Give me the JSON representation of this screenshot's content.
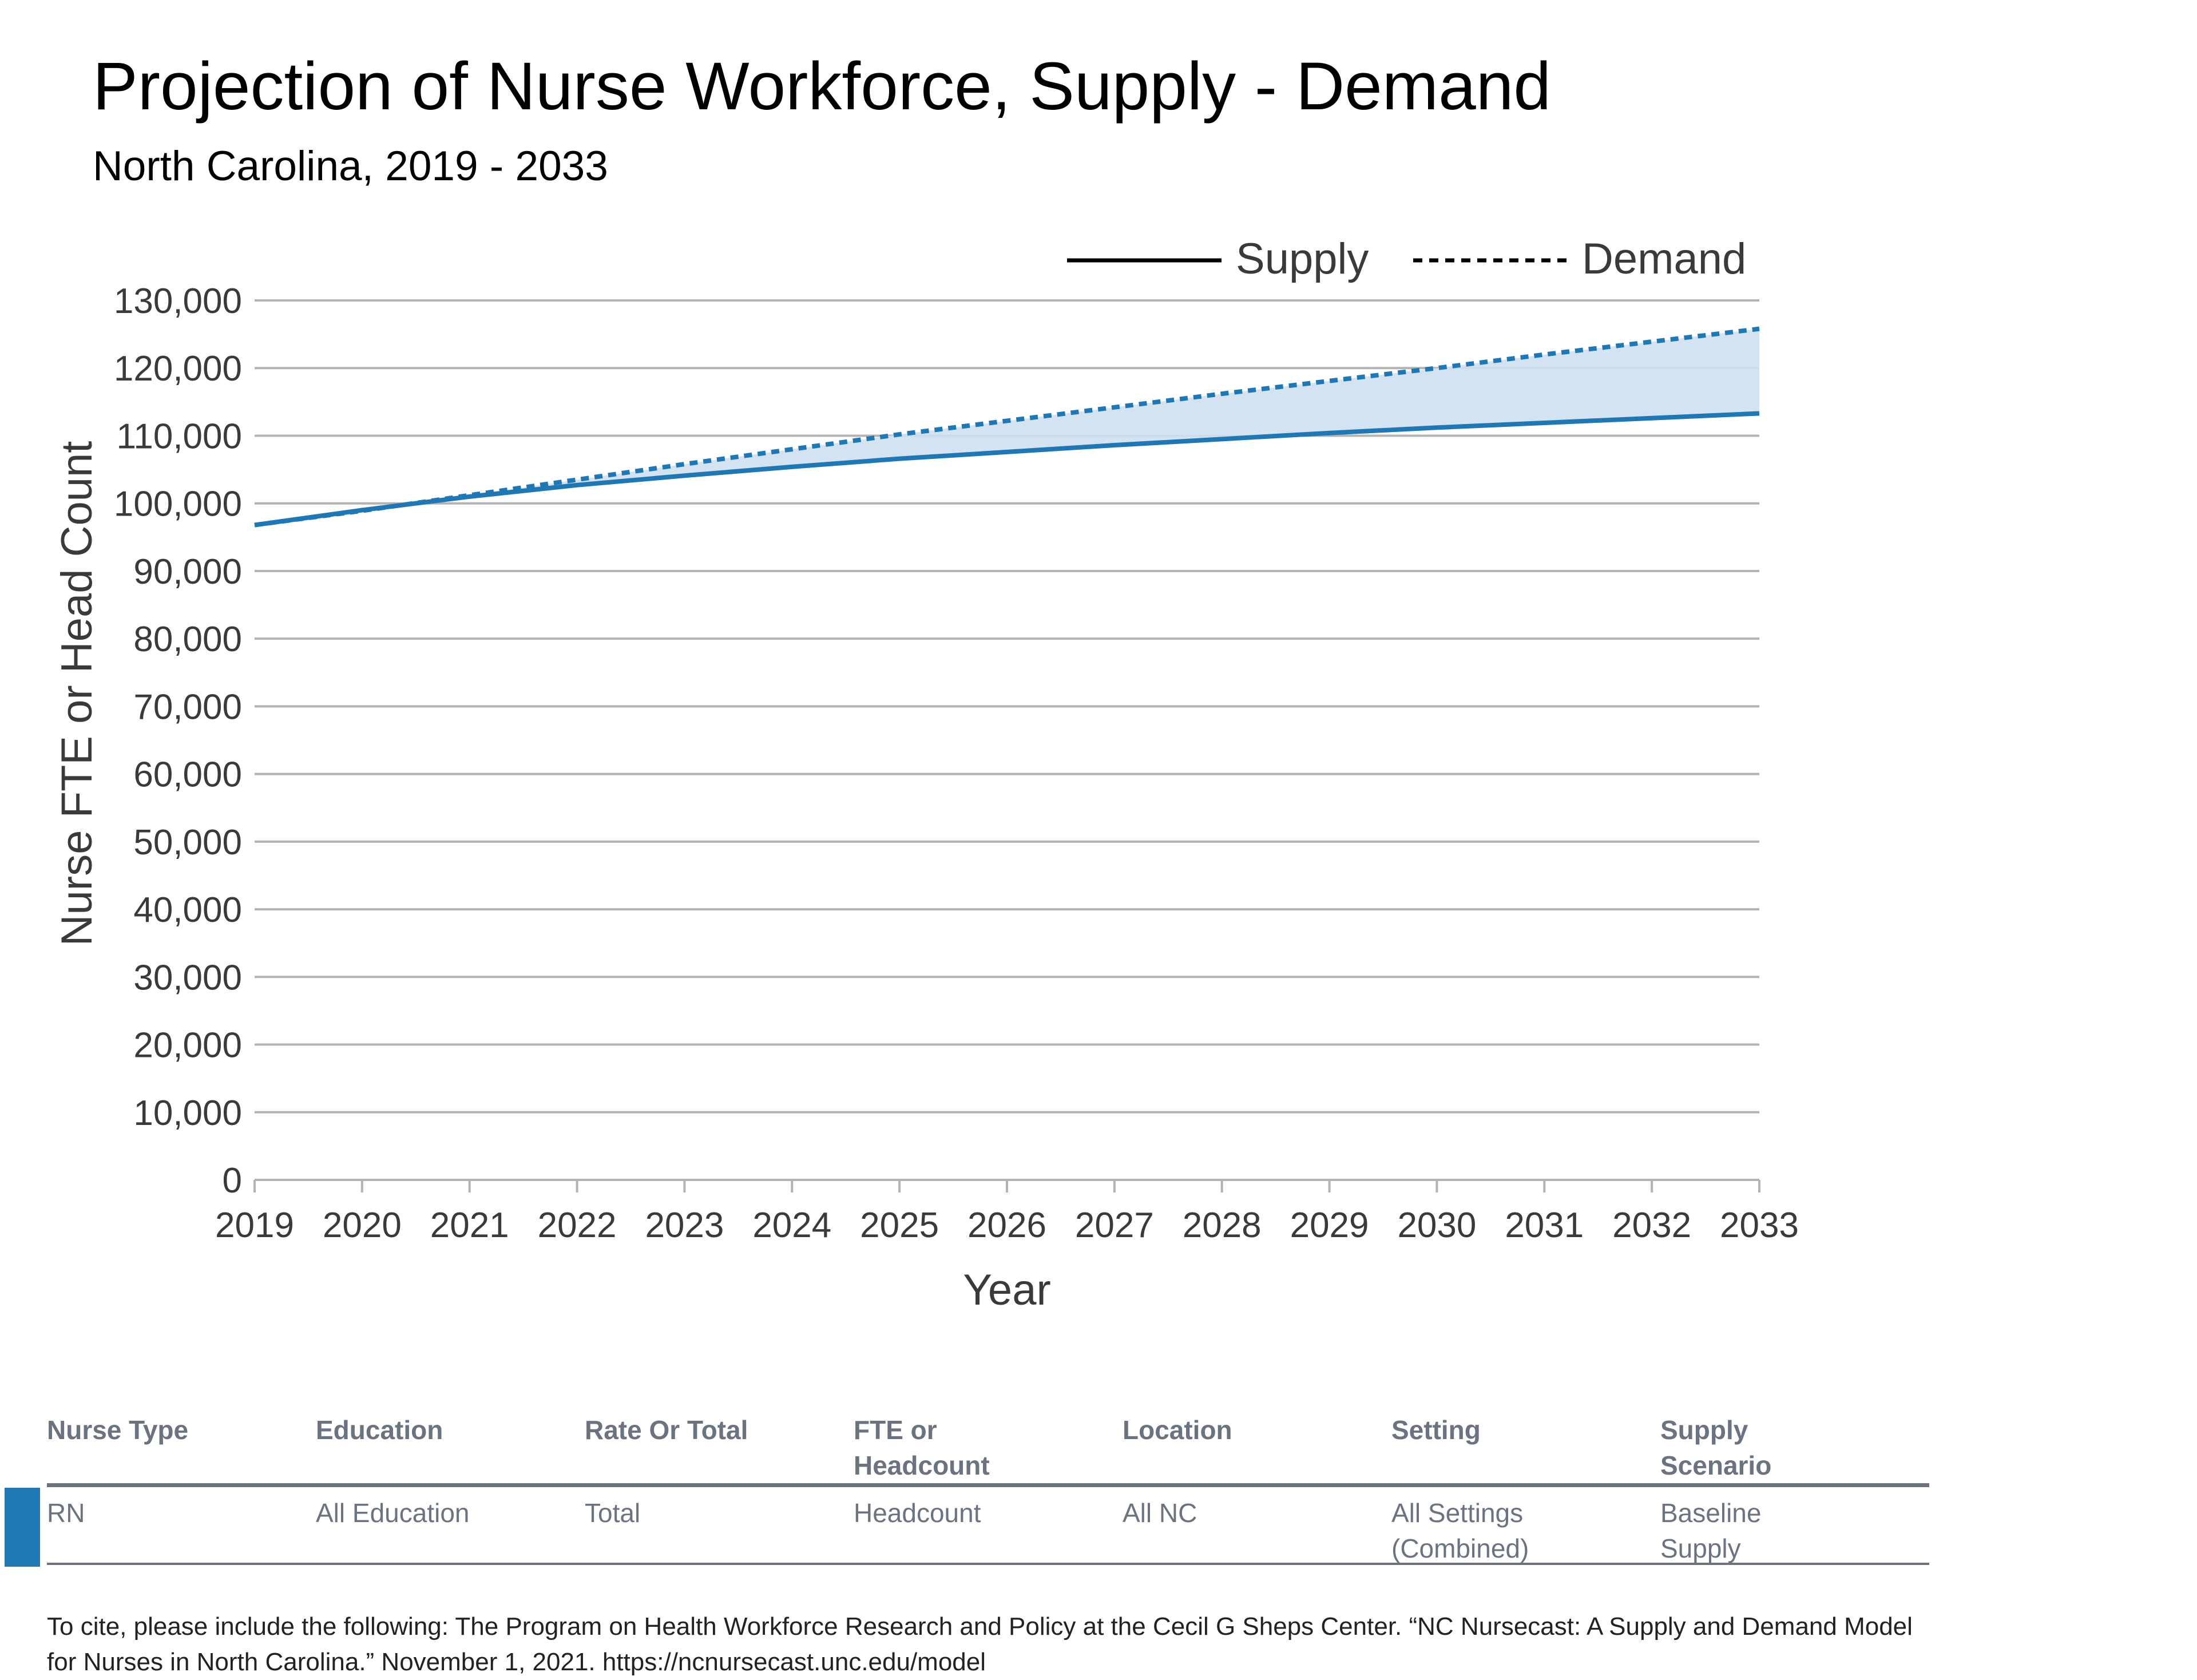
{
  "chart_data": {
    "type": "line",
    "title": "Projection of Nurse Workforce, Supply - Demand",
    "subtitle": "North Carolina, 2019 - 2033",
    "xlabel": "Year",
    "ylabel": "Nurse FTE or Head Count",
    "categories": [
      "2019",
      "2020",
      "2021",
      "2022",
      "2023",
      "2024",
      "2025",
      "2026",
      "2027",
      "2028",
      "2029",
      "2030",
      "2031",
      "2032",
      "2033"
    ],
    "ylim": [
      0,
      130000
    ],
    "yticks": [
      0,
      10000,
      20000,
      30000,
      40000,
      50000,
      60000,
      70000,
      80000,
      90000,
      100000,
      110000,
      120000,
      130000
    ],
    "ytick_labels": [
      "0",
      "10,000",
      "20,000",
      "30,000",
      "40,000",
      "50,000",
      "60,000",
      "70,000",
      "80,000",
      "90,000",
      "100,000",
      "110,000",
      "120,000",
      "130,000"
    ],
    "grid": true,
    "legend_position": "top-right",
    "series": [
      {
        "name": "Supply",
        "style": "solid",
        "color": "#1f77b4",
        "values": [
          96800,
          99000,
          101000,
          102700,
          104100,
          105400,
          106600,
          107600,
          108600,
          109500,
          110400,
          111200,
          111900,
          112600,
          113300
        ]
      },
      {
        "name": "Demand",
        "style": "dashed",
        "color": "#1f77b4",
        "values": [
          96800,
          98900,
          101200,
          103500,
          105800,
          108000,
          110200,
          112200,
          114200,
          116200,
          118100,
          120000,
          122000,
          123900,
          125800
        ]
      }
    ],
    "fill_between": {
      "color": "#cfe0ef"
    }
  },
  "filters": {
    "headers": [
      "Nurse Type",
      "Education",
      "Rate Or Total",
      "FTE or\nHeadcount",
      "Location",
      "Setting",
      "Supply\nScenario"
    ],
    "row": [
      "RN",
      "All Education",
      "Total",
      "Headcount",
      "All NC",
      "All Settings\n(Combined)",
      "Baseline\nSupply"
    ]
  },
  "citation": "To cite, please include the following: The Program on Health Workforce Research and Policy at the Cecil G Sheps Center. “NC Nursecast: A Supply and Demand Model for Nurses in North Carolina.” November 1, 2021. https://ncnursecast.unc.edu/model"
}
